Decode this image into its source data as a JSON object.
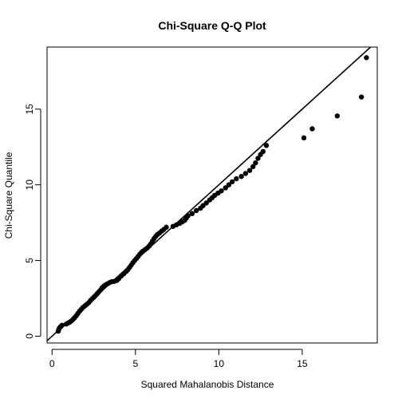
{
  "chart_data": {
    "type": "scatter",
    "title": "Chi-Square Q-Q Plot",
    "xlabel": "Squared Mahalanobis Distance",
    "ylabel": "Chi-Square Quantile",
    "xlim": [
      -0.3,
      19.5
    ],
    "ylim": [
      -0.45,
      19.1
    ],
    "xticks": [
      0,
      5,
      10,
      15
    ],
    "yticks": [
      0,
      5,
      10,
      15
    ],
    "grid": false,
    "reference_line": {
      "intercept": 0,
      "slope": 1,
      "label": ""
    },
    "colors": {
      "points": "#000000",
      "line": "#000000",
      "axes": "#000000"
    },
    "points": [
      [
        0.37,
        0.33
      ],
      [
        0.4,
        0.44
      ],
      [
        0.45,
        0.55
      ],
      [
        0.52,
        0.64
      ],
      [
        0.6,
        0.72
      ],
      [
        0.85,
        0.8
      ],
      [
        0.95,
        0.86
      ],
      [
        1.05,
        0.92
      ],
      [
        1.15,
        1.0
      ],
      [
        1.25,
        1.1
      ],
      [
        1.35,
        1.22
      ],
      [
        1.45,
        1.35
      ],
      [
        1.55,
        1.5
      ],
      [
        1.65,
        1.65
      ],
      [
        1.75,
        1.77
      ],
      [
        1.85,
        1.9
      ],
      [
        1.97,
        2.0
      ],
      [
        2.08,
        2.1
      ],
      [
        2.2,
        2.22
      ],
      [
        2.3,
        2.35
      ],
      [
        2.4,
        2.46
      ],
      [
        2.5,
        2.57
      ],
      [
        2.6,
        2.68
      ],
      [
        2.7,
        2.8
      ],
      [
        2.8,
        2.92
      ],
      [
        2.9,
        3.05
      ],
      [
        3.0,
        3.2
      ],
      [
        3.1,
        3.3
      ],
      [
        3.2,
        3.38
      ],
      [
        3.32,
        3.46
      ],
      [
        3.45,
        3.54
      ],
      [
        3.58,
        3.6
      ],
      [
        3.72,
        3.62
      ],
      [
        3.88,
        3.68
      ],
      [
        4.0,
        3.8
      ],
      [
        4.15,
        3.98
      ],
      [
        4.3,
        4.12
      ],
      [
        4.45,
        4.28
      ],
      [
        4.55,
        4.4
      ],
      [
        4.65,
        4.55
      ],
      [
        4.75,
        4.7
      ],
      [
        4.85,
        4.85
      ],
      [
        4.95,
        5.0
      ],
      [
        5.05,
        5.12
      ],
      [
        5.15,
        5.25
      ],
      [
        5.25,
        5.4
      ],
      [
        5.35,
        5.52
      ],
      [
        5.45,
        5.62
      ],
      [
        5.58,
        5.72
      ],
      [
        5.7,
        5.82
      ],
      [
        5.82,
        5.95
      ],
      [
        5.92,
        6.1
      ],
      [
        6.02,
        6.28
      ],
      [
        6.12,
        6.45
      ],
      [
        6.22,
        6.6
      ],
      [
        6.32,
        6.72
      ],
      [
        6.45,
        6.82
      ],
      [
        6.58,
        6.95
      ],
      [
        6.7,
        7.05
      ],
      [
        6.85,
        7.2
      ],
      [
        7.25,
        7.25
      ],
      [
        7.45,
        7.35
      ],
      [
        7.65,
        7.45
      ],
      [
        7.8,
        7.55
      ],
      [
        7.95,
        7.65
      ],
      [
        8.05,
        7.8
      ],
      [
        8.15,
        7.95
      ],
      [
        8.4,
        8.1
      ],
      [
        8.65,
        8.3
      ],
      [
        8.9,
        8.45
      ],
      [
        9.05,
        8.62
      ],
      [
        9.25,
        8.8
      ],
      [
        9.45,
        9.0
      ],
      [
        9.6,
        9.15
      ],
      [
        9.75,
        9.3
      ],
      [
        9.95,
        9.45
      ],
      [
        10.15,
        9.6
      ],
      [
        10.4,
        9.8
      ],
      [
        10.6,
        10.0
      ],
      [
        10.8,
        10.2
      ],
      [
        11.05,
        10.4
      ],
      [
        11.35,
        10.55
      ],
      [
        11.6,
        10.75
      ],
      [
        11.85,
        10.95
      ],
      [
        12.05,
        11.2
      ],
      [
        12.2,
        11.45
      ],
      [
        12.35,
        11.75
      ],
      [
        12.5,
        12.0
      ],
      [
        12.65,
        12.2
      ],
      [
        12.85,
        12.6
      ],
      [
        15.1,
        13.1
      ],
      [
        15.6,
        13.7
      ],
      [
        17.1,
        14.55
      ],
      [
        18.55,
        15.8
      ],
      [
        18.85,
        18.4
      ]
    ]
  }
}
